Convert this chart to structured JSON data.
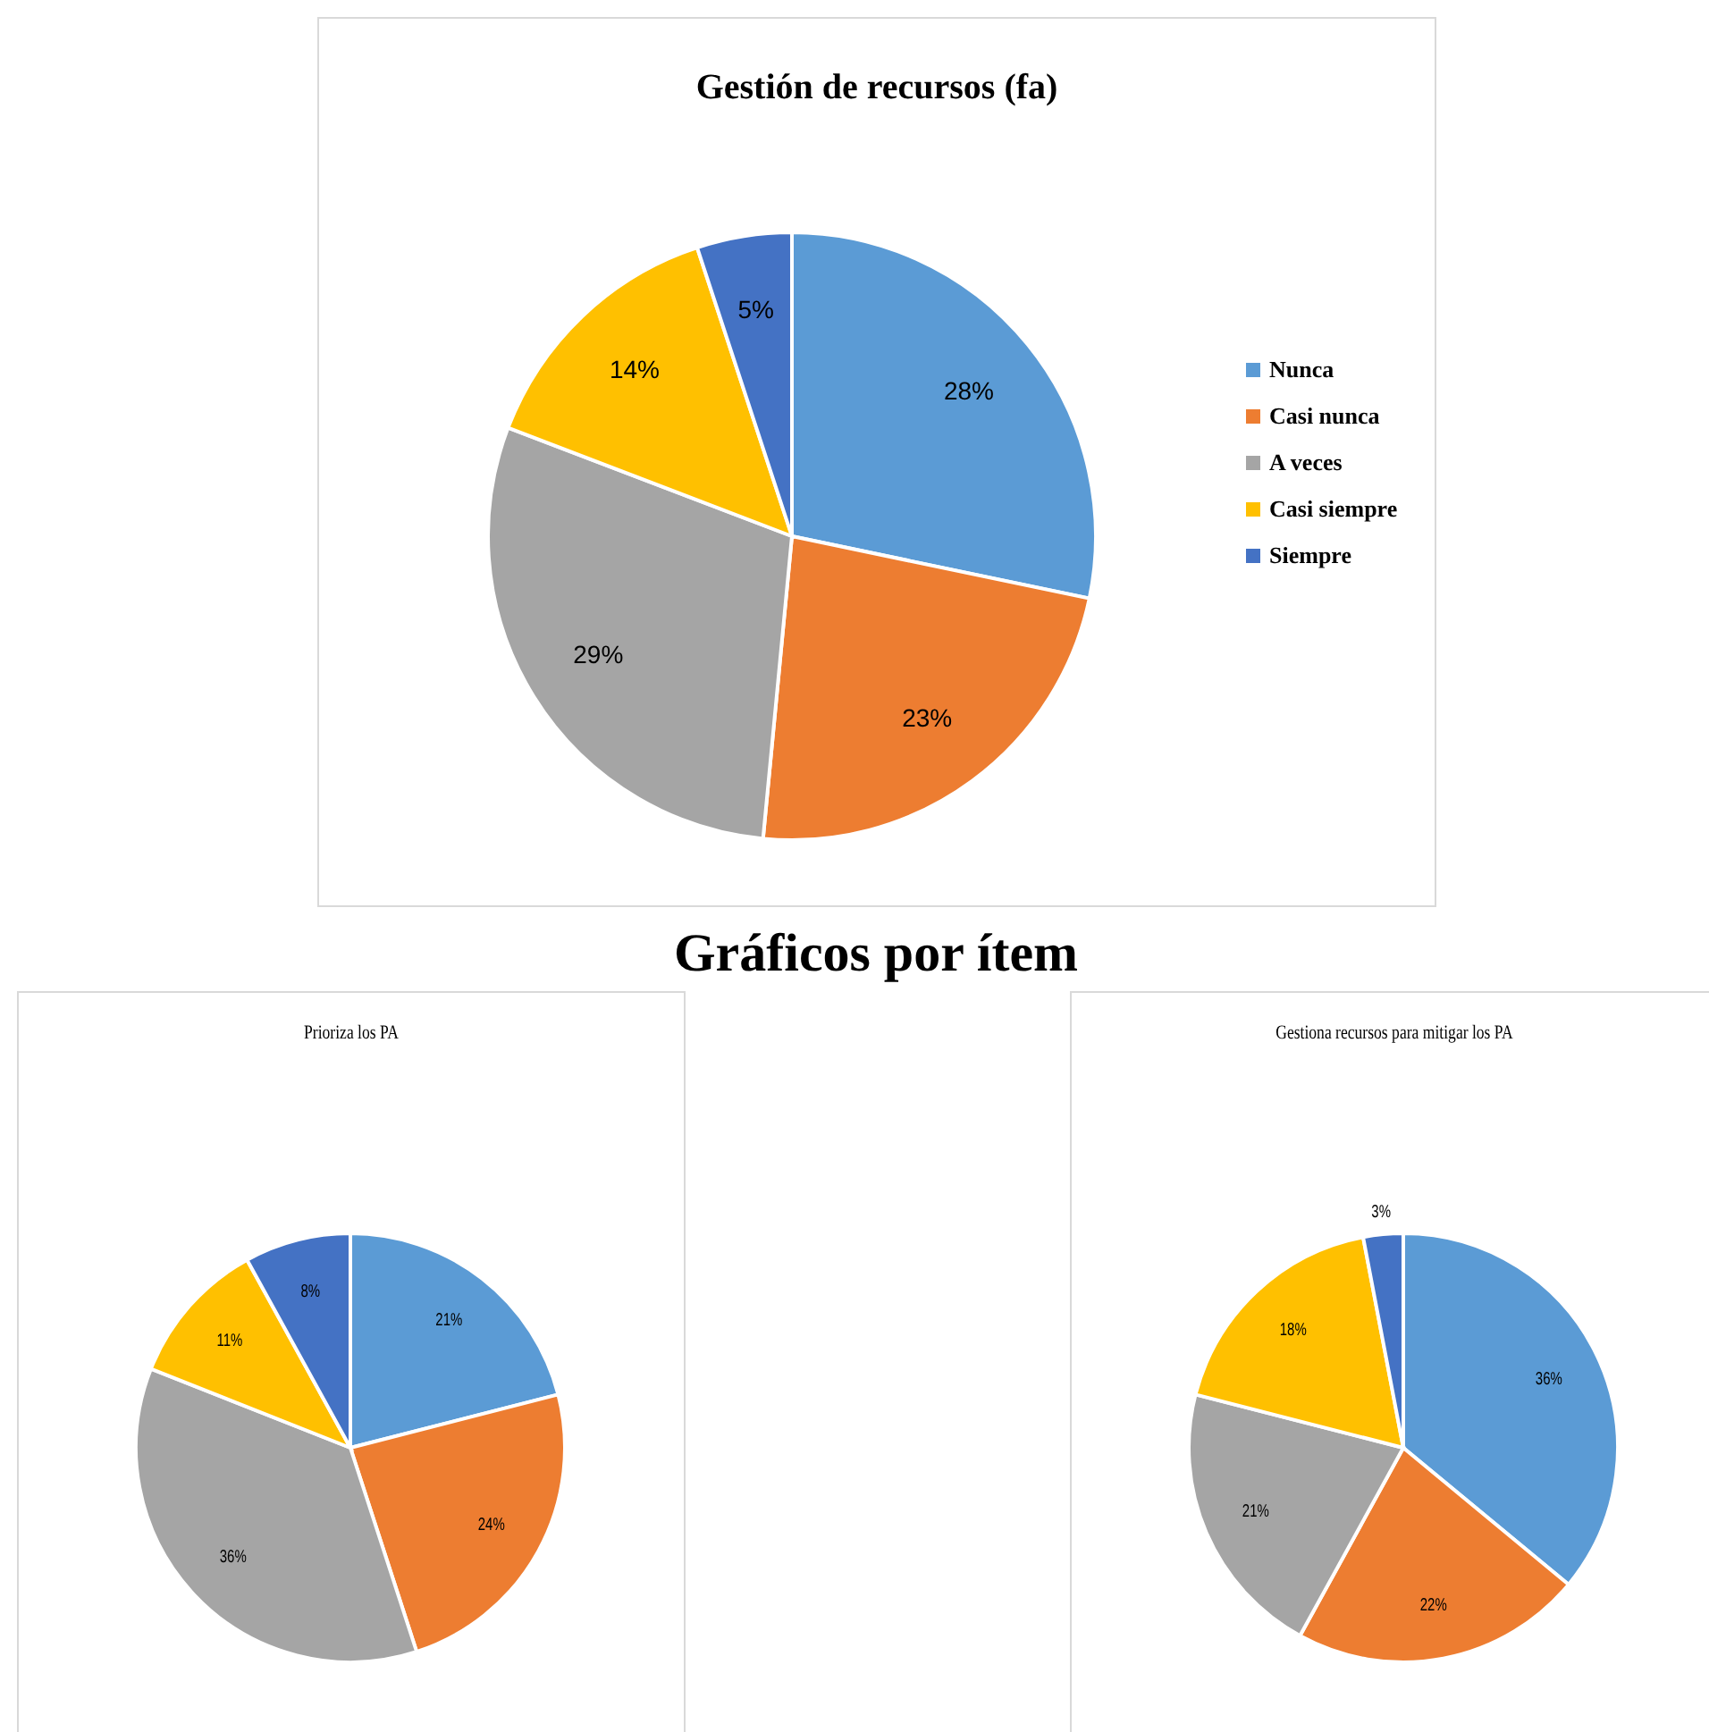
{
  "chart_data": [
    {
      "type": "pie",
      "title": "Gestión de recursos (fa)",
      "categories": [
        "Nunca",
        "Casi nunca",
        "A veces",
        "Casi siempre",
        "Siempre"
      ],
      "values": [
        28,
        23,
        29,
        14,
        5
      ],
      "colors": [
        "#5b9bd5",
        "#ed7d31",
        "#a5a5a5",
        "#ffc000",
        "#4472c4"
      ],
      "value_labels": [
        "28%",
        "23%",
        "29%",
        "14%",
        "5%"
      ],
      "legend": "right"
    },
    {
      "type": "other",
      "title": "Gráficos por ítem"
    },
    {
      "type": "pie",
      "title": "Prioriza los PA",
      "values": [
        21,
        24,
        36,
        11,
        8
      ],
      "colors": [
        "#5b9bd5",
        "#ed7d31",
        "#a5a5a5",
        "#ffc000",
        "#4472c4"
      ],
      "value_labels": [
        "21%",
        "24%",
        "36%",
        "11%",
        "8%"
      ]
    },
    {
      "type": "pie",
      "title": "Gestiona recursos para mitigar los PA",
      "values": [
        36,
        22,
        21,
        18,
        3
      ],
      "colors": [
        "#5b9bd5",
        "#ed7d31",
        "#a5a5a5",
        "#ffc000",
        "#4472c4"
      ],
      "value_labels": [
        "36%",
        "22%",
        "21%",
        "18%",
        "3%"
      ]
    }
  ]
}
